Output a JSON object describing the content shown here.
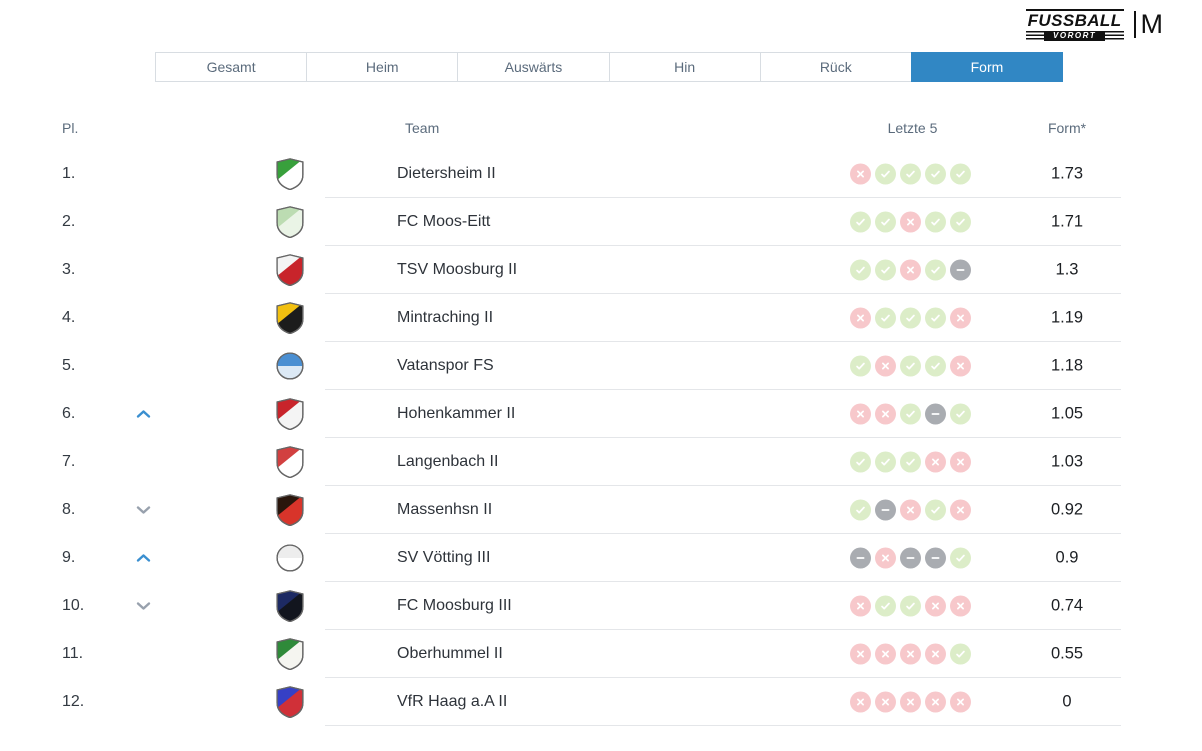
{
  "brand": {
    "word1": "FUSSBALL",
    "word2": "VORORT",
    "mark": "M"
  },
  "tabs": [
    {
      "label": "Gesamt",
      "active": false
    },
    {
      "label": "Heim",
      "active": false
    },
    {
      "label": "Auswärts",
      "active": false
    },
    {
      "label": "Hin",
      "active": false
    },
    {
      "label": "Rück",
      "active": false
    },
    {
      "label": "Form",
      "active": true
    }
  ],
  "colors": {
    "accent_blue": "#3187c4",
    "win_bg": "#dcedc8",
    "loss_bg": "#f7c8cb",
    "draw_bg": "#a9acb1",
    "divider": "#e4e6e9",
    "tab_border": "#d8dde2",
    "header_text": "#5b6b7c",
    "trend_up": "#3a8fd0",
    "trend_down": "#98a1ad"
  },
  "table": {
    "headers": {
      "place": "Pl.",
      "team": "Team",
      "last5": "Letzte 5",
      "form": "Form*"
    },
    "rows": [
      {
        "place": "1.",
        "trend": "",
        "team": "Dietersheim II",
        "last5": [
          "L",
          "W",
          "W",
          "W",
          "W"
        ],
        "form": "1.73",
        "badge": {
          "shape": "shield",
          "primary": "#38a03c",
          "secondary": "#ffffff"
        }
      },
      {
        "place": "2.",
        "trend": "",
        "team": "FC Moos-Eitt",
        "last5": [
          "W",
          "W",
          "L",
          "W",
          "W"
        ],
        "form": "1.71",
        "badge": {
          "shape": "shield",
          "primary": "#bcdcb2",
          "secondary": "#eaf4e6"
        }
      },
      {
        "place": "3.",
        "trend": "",
        "team": "TSV Moosburg II",
        "last5": [
          "W",
          "W",
          "L",
          "W",
          "D"
        ],
        "form": "1.3",
        "badge": {
          "shape": "shield",
          "primary": "#f4f4f4",
          "secondary": "#c8242b"
        }
      },
      {
        "place": "4.",
        "trend": "",
        "team": "Mintraching II",
        "last5": [
          "L",
          "W",
          "W",
          "W",
          "L"
        ],
        "form": "1.19",
        "badge": {
          "shape": "shield",
          "primary": "#f2c010",
          "secondary": "#1c1c1c"
        }
      },
      {
        "place": "5.",
        "trend": "",
        "team": "Vatanspor FS",
        "last5": [
          "W",
          "L",
          "W",
          "W",
          "L"
        ],
        "form": "1.18",
        "badge": {
          "shape": "circle",
          "primary": "#4a8fd2",
          "secondary": "#dce9f5"
        }
      },
      {
        "place": "6.",
        "trend": "up",
        "team": "Hohenkammer II",
        "last5": [
          "L",
          "L",
          "W",
          "D",
          "W"
        ],
        "form": "1.05",
        "badge": {
          "shape": "shield",
          "primary": "#c8242b",
          "secondary": "#f4f4f4"
        }
      },
      {
        "place": "7.",
        "trend": "",
        "team": "Langenbach II",
        "last5": [
          "W",
          "W",
          "W",
          "L",
          "L"
        ],
        "form": "1.03",
        "badge": {
          "shape": "shield",
          "primary": "#d24040",
          "secondary": "#ffffff"
        }
      },
      {
        "place": "8.",
        "trend": "down",
        "team": "Massenhsn II",
        "last5": [
          "W",
          "D",
          "L",
          "W",
          "L"
        ],
        "form": "0.92",
        "badge": {
          "shape": "shield",
          "primary": "#2a160c",
          "secondary": "#d8342a"
        }
      },
      {
        "place": "9.",
        "trend": "up",
        "team": "SV Vötting III",
        "last5": [
          "D",
          "L",
          "D",
          "D",
          "W"
        ],
        "form": "0.9",
        "badge": {
          "shape": "circle",
          "primary": "#ededed",
          "secondary": "#ffffff"
        }
      },
      {
        "place": "10.",
        "trend": "down",
        "team": "FC Moosburg III",
        "last5": [
          "L",
          "W",
          "W",
          "L",
          "L"
        ],
        "form": "0.74",
        "badge": {
          "shape": "shield",
          "primary": "#1d2a63",
          "secondary": "#12151e"
        }
      },
      {
        "place": "11.",
        "trend": "",
        "team": "Oberhummel II",
        "last5": [
          "L",
          "L",
          "L",
          "L",
          "W"
        ],
        "form": "0.55",
        "badge": {
          "shape": "shield",
          "primary": "#2f8a3a",
          "secondary": "#f5f5f0"
        }
      },
      {
        "place": "12.",
        "trend": "",
        "team": "VfR Haag a.A II",
        "last5": [
          "L",
          "L",
          "L",
          "L",
          "L"
        ],
        "form": "0",
        "badge": {
          "shape": "shield",
          "primary": "#3640c6",
          "secondary": "#d03038"
        }
      }
    ]
  }
}
